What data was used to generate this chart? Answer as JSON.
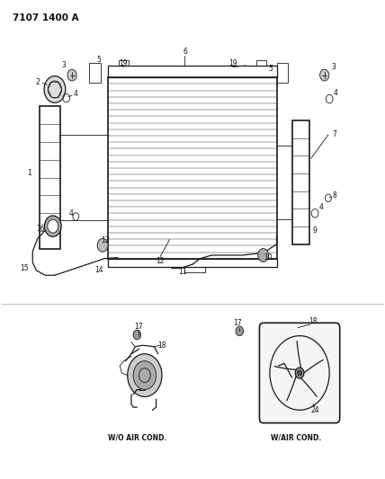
{
  "title": "7107 1400 A",
  "bg_color": "#ffffff",
  "line_color": "#1a1a1a",
  "text_color": "#111111",
  "fig_width": 4.28,
  "fig_height": 5.33,
  "dpi": 100,
  "labels": {
    "wo_air_cond": "W/O AIR COND.",
    "w_air_cond": "W/AIR COND."
  }
}
